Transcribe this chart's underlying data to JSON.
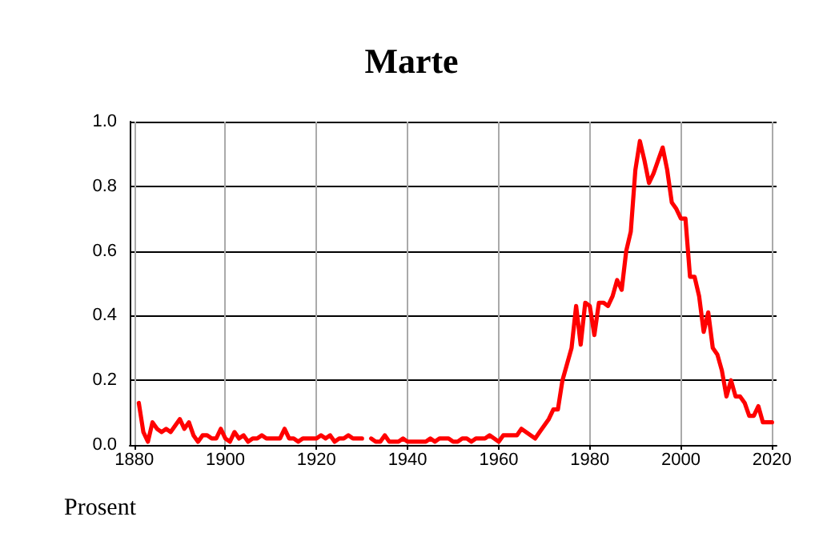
{
  "chart_data": {
    "type": "line",
    "title": "Marte",
    "ylabel": "Prosent",
    "x": [
      1881,
      1882,
      1883,
      1884,
      1885,
      1886,
      1887,
      1888,
      1889,
      1890,
      1891,
      1892,
      1893,
      1894,
      1895,
      1896,
      1897,
      1898,
      1899,
      1900,
      1901,
      1902,
      1903,
      1904,
      1905,
      1906,
      1907,
      1908,
      1909,
      1910,
      1911,
      1912,
      1913,
      1914,
      1915,
      1916,
      1917,
      1918,
      1919,
      1920,
      1921,
      1922,
      1923,
      1924,
      1925,
      1926,
      1927,
      1928,
      1929,
      1930,
      1931,
      1932,
      1933,
      1934,
      1935,
      1936,
      1937,
      1938,
      1939,
      1940,
      1941,
      1942,
      1943,
      1944,
      1945,
      1946,
      1947,
      1948,
      1949,
      1950,
      1951,
      1952,
      1953,
      1954,
      1955,
      1956,
      1957,
      1958,
      1959,
      1960,
      1961,
      1962,
      1963,
      1964,
      1965,
      1966,
      1967,
      1968,
      1969,
      1970,
      1971,
      1972,
      1973,
      1974,
      1975,
      1976,
      1977,
      1978,
      1979,
      1980,
      1981,
      1982,
      1983,
      1984,
      1985,
      1986,
      1987,
      1988,
      1989,
      1990,
      1991,
      1992,
      1993,
      1994,
      1995,
      1996,
      1997,
      1998,
      1999,
      2000,
      2001,
      2002,
      2003,
      2004,
      2005,
      2006,
      2007,
      2008,
      2009,
      2010,
      2011,
      2012,
      2013,
      2014,
      2015,
      2016,
      2017,
      2018,
      2019,
      2020
    ],
    "series": [
      {
        "color": "#ff0000",
        "values": [
          0.13,
          0.04,
          0.01,
          0.07,
          0.05,
          0.04,
          0.05,
          0.04,
          0.06,
          0.08,
          0.05,
          0.07,
          0.03,
          0.01,
          0.03,
          0.03,
          0.02,
          0.02,
          0.05,
          0.02,
          0.01,
          0.04,
          0.02,
          0.03,
          0.01,
          0.02,
          0.02,
          0.03,
          0.02,
          0.02,
          0.02,
          0.02,
          0.05,
          0.02,
          0.02,
          0.01,
          0.02,
          0.02,
          0.02,
          0.02,
          0.03,
          0.02,
          0.03,
          0.01,
          0.02,
          0.02,
          0.03,
          0.02,
          0.02,
          0.02,
          null,
          0.02,
          0.01,
          0.01,
          0.03,
          0.01,
          0.01,
          0.01,
          0.02,
          0.01,
          0.01,
          0.01,
          0.01,
          0.01,
          0.02,
          0.01,
          0.02,
          0.02,
          0.02,
          0.01,
          0.01,
          0.02,
          0.02,
          0.01,
          0.02,
          0.02,
          0.02,
          0.03,
          0.02,
          0.01,
          0.03,
          0.03,
          0.03,
          0.03,
          0.05,
          0.04,
          0.03,
          0.02,
          0.04,
          0.06,
          0.08,
          0.11,
          0.11,
          0.2,
          0.25,
          0.3,
          0.43,
          0.31,
          0.44,
          0.43,
          0.34,
          0.44,
          0.44,
          0.43,
          0.46,
          0.51,
          0.48,
          0.6,
          0.66,
          0.85,
          0.94,
          0.88,
          0.81,
          0.84,
          0.88,
          0.92,
          0.85,
          0.75,
          0.73,
          0.7,
          0.7,
          0.52,
          0.52,
          0.46,
          0.35,
          0.41,
          0.3,
          0.28,
          0.23,
          0.15,
          0.2,
          0.15,
          0.15,
          0.13,
          0.09,
          0.09,
          0.12,
          0.07,
          0.07,
          0.07
        ]
      }
    ],
    "xlim": [
      1879,
      2021
    ],
    "xticks": [
      1880,
      1900,
      1920,
      1940,
      1960,
      1980,
      2000,
      2020
    ],
    "ylim": [
      0,
      1
    ],
    "yticks": [
      {
        "value": 0,
        "label": "0.0"
      },
      0.2,
      0.4,
      0.6,
      0.8,
      {
        "value": 1,
        "label": "1.0"
      }
    ],
    "grid": true,
    "marker": "none",
    "line_style": "solid"
  }
}
